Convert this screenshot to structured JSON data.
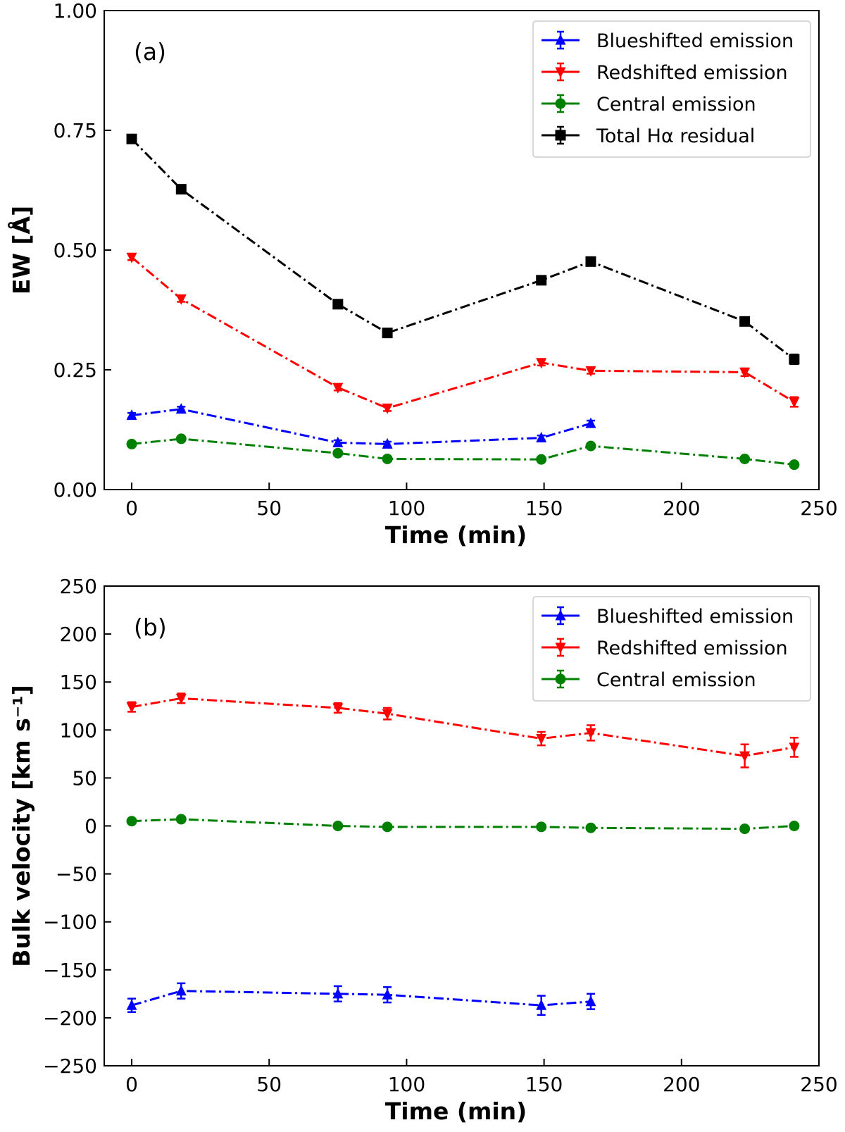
{
  "chart_data": [
    {
      "type": "line",
      "panel_label": "(a)",
      "xlabel": "Time (min)",
      "ylabel": "EW [Å]",
      "xlim": [
        -10,
        250
      ],
      "ylim": [
        0.0,
        1.0
      ],
      "xticks": [
        0,
        50,
        100,
        150,
        200,
        250
      ],
      "yticks": [
        0.0,
        0.25,
        0.5,
        0.75,
        1.0
      ],
      "ytick_labels": [
        "0.00",
        "0.25",
        "0.50",
        "0.75",
        "1.00"
      ],
      "xtick_labels": [
        "0",
        "50",
        "100",
        "150",
        "200",
        "250"
      ],
      "legend_position": "top-right",
      "series": [
        {
          "name": "Blueshifted emission",
          "color": "#0000ff",
          "marker": "triangle-up",
          "x": [
            0,
            18,
            75,
            93,
            149,
            167
          ],
          "y": [
            0.155,
            0.168,
            0.098,
            0.095,
            0.108,
            0.138
          ],
          "err": [
            0.005,
            0.005,
            0.005,
            0.005,
            0.005,
            0.006
          ]
        },
        {
          "name": "Redshifted emission",
          "color": "#ff0000",
          "marker": "triangle-down",
          "x": [
            0,
            18,
            75,
            93,
            149,
            167,
            223,
            241
          ],
          "y": [
            0.485,
            0.398,
            0.213,
            0.17,
            0.265,
            0.248,
            0.245,
            0.183
          ],
          "err": [
            0.006,
            0.006,
            0.006,
            0.006,
            0.006,
            0.006,
            0.008,
            0.01
          ]
        },
        {
          "name": "Central emission",
          "color": "#008000",
          "marker": "circle",
          "x": [
            0,
            18,
            75,
            93,
            149,
            167,
            223,
            241
          ],
          "y": [
            0.095,
            0.106,
            0.076,
            0.064,
            0.063,
            0.091,
            0.064,
            0.052
          ],
          "err": [
            0.004,
            0.004,
            0.004,
            0.004,
            0.004,
            0.004,
            0.004,
            0.004
          ]
        },
        {
          "name": "Total Hα residual",
          "color": "#000000",
          "marker": "square",
          "x": [
            0,
            18,
            75,
            93,
            149,
            167,
            223,
            241
          ],
          "y": [
            0.732,
            0.627,
            0.387,
            0.327,
            0.437,
            0.476,
            0.351,
            0.272
          ],
          "err": [
            0.006,
            0.006,
            0.006,
            0.006,
            0.006,
            0.006,
            0.008,
            0.01
          ]
        }
      ]
    },
    {
      "type": "line",
      "panel_label": "(b)",
      "xlabel": "Time (min)",
      "ylabel": "Bulk velocity [km s⁻¹]",
      "xlim": [
        -10,
        250
      ],
      "ylim": [
        -250,
        250
      ],
      "xticks": [
        0,
        50,
        100,
        150,
        200,
        250
      ],
      "yticks": [
        -250,
        -200,
        -150,
        -100,
        -50,
        0,
        50,
        100,
        150,
        200,
        250
      ],
      "ytick_labels": [
        "−250",
        "−200",
        "−150",
        "−100",
        "−50",
        "0",
        "50",
        "100",
        "150",
        "200",
        "250"
      ],
      "xtick_labels": [
        "0",
        "50",
        "100",
        "150",
        "200",
        "250"
      ],
      "legend_position": "top-right",
      "series": [
        {
          "name": "Blueshifted emission",
          "color": "#0000ff",
          "marker": "triangle-up",
          "x": [
            0,
            18,
            75,
            93,
            149,
            167
          ],
          "y": [
            -187,
            -172,
            -175,
            -176,
            -187,
            -183
          ],
          "err": [
            7,
            8,
            8,
            8,
            10,
            8
          ]
        },
        {
          "name": "Redshifted emission",
          "color": "#ff0000",
          "marker": "triangle-down",
          "x": [
            0,
            18,
            75,
            93,
            149,
            167,
            223,
            241
          ],
          "y": [
            124,
            133,
            123,
            117,
            91,
            97,
            73,
            82
          ],
          "err": [
            5,
            5,
            5,
            6,
            7,
            8,
            12,
            10
          ]
        },
        {
          "name": "Central emission",
          "color": "#008000",
          "marker": "circle",
          "x": [
            0,
            18,
            75,
            93,
            149,
            167,
            223,
            241
          ],
          "y": [
            5,
            7,
            0,
            -1,
            -1,
            -2,
            -3,
            0
          ],
          "err": [
            2,
            2,
            2,
            2,
            2,
            2,
            2,
            2
          ]
        }
      ]
    }
  ]
}
